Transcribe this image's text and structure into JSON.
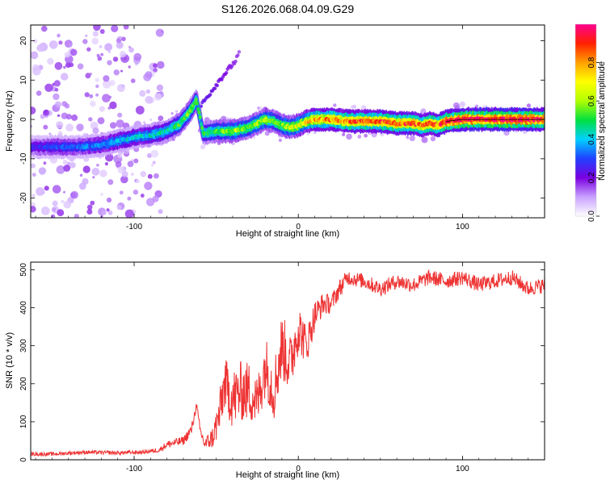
{
  "title": "S126.2026.068.04.09.G29",
  "chart_data": [
    {
      "type": "heatmap",
      "xlabel": "Height of straight line (km)",
      "ylabel": "Frequency (Hz)",
      "xlim": [
        -163,
        150
      ],
      "ylim": [
        -25,
        24
      ],
      "xticks": [
        -100,
        0,
        100
      ],
      "yticks": [
        -20,
        -10,
        0,
        10,
        20
      ],
      "colorbar": {
        "label": "Normalized spectral amplitude",
        "range": [
          0,
          1
        ],
        "ticks": [
          "0.0",
          "0.2",
          "0.4",
          "0.6",
          "0.8"
        ],
        "tick_values": [
          0,
          0.2,
          0.4,
          0.6,
          0.8
        ],
        "stops": [
          "#ffffff",
          "#c9a2ff",
          "#7a00e0",
          "#2040ff",
          "#00d0ff",
          "#00e040",
          "#b0ff00",
          "#ffff00",
          "#ffa000",
          "#ff2000",
          "#ff0090"
        ]
      },
      "ridge": {
        "x": [
          -163,
          -150,
          -135,
          -120,
          -110,
          -100,
          -90,
          -80,
          -72,
          -66,
          -62,
          -58,
          -50,
          -40,
          -30,
          -25,
          -20,
          -15,
          -10,
          -5,
          0,
          5,
          10,
          20,
          30,
          40,
          50,
          60,
          70,
          75,
          80,
          85,
          90,
          100,
          110,
          120,
          130,
          140,
          150
        ],
        "y": [
          -7,
          -7,
          -7,
          -6.5,
          -5.5,
          -4.5,
          -4,
          -3,
          -1,
          2,
          5,
          -3.5,
          -3,
          -3,
          -2,
          -1,
          0,
          -0.5,
          -1.5,
          -2,
          -1.5,
          -0.5,
          0,
          0,
          -0.5,
          -0.5,
          -0.5,
          -1,
          -1,
          -1.5,
          -1,
          -1.5,
          -0.5,
          0,
          0,
          0,
          0,
          0,
          0
        ],
        "amplitude": [
          0.25,
          0.3,
          0.32,
          0.35,
          0.38,
          0.4,
          0.42,
          0.45,
          0.5,
          0.55,
          0.5,
          0.48,
          0.52,
          0.6,
          0.55,
          0.6,
          0.62,
          0.55,
          0.58,
          0.62,
          0.65,
          0.7,
          0.78,
          0.8,
          0.82,
          0.85,
          0.85,
          0.88,
          0.86,
          0.8,
          0.84,
          0.82,
          0.92,
          0.95,
          0.95,
          0.96,
          0.96,
          0.95,
          0.95
        ]
      },
      "branch": {
        "x": [
          -62,
          -55,
          -48,
          -42,
          -38,
          -36
        ],
        "y": [
          2,
          6,
          10,
          13,
          15,
          17
        ],
        "amplitude": [
          0.3,
          0.28,
          0.26,
          0.24,
          0.22,
          0.2
        ]
      },
      "noise_region_x": [
        -163,
        -82
      ]
    },
    {
      "type": "line",
      "xlabel": "Height of straight line (km)",
      "ylabel": "SNR (10 * v/v)",
      "xlim": [
        -163,
        150
      ],
      "ylim": [
        0,
        520
      ],
      "xticks": [
        -100,
        0,
        100
      ],
      "yticks": [
        0,
        100,
        200,
        300,
        400,
        500
      ],
      "series": [
        {
          "name": "SNR",
          "color": "#ee3333",
          "x": [
            -163,
            -150,
            -130,
            -110,
            -95,
            -85,
            -80,
            -70,
            -65,
            -62,
            -60,
            -57,
            -52,
            -48,
            -45,
            -40,
            -35,
            -30,
            -25,
            -20,
            -15,
            -10,
            -5,
            0,
            5,
            10,
            15,
            20,
            25,
            30,
            40,
            50,
            60,
            70,
            80,
            90,
            100,
            110,
            120,
            130,
            140,
            150
          ],
          "y": [
            15,
            15,
            20,
            18,
            20,
            25,
            40,
            50,
            80,
            145,
            80,
            40,
            60,
            120,
            200,
            160,
            180,
            180,
            150,
            250,
            180,
            300,
            250,
            350,
            300,
            380,
            410,
            410,
            450,
            480,
            470,
            450,
            470,
            460,
            480,
            470,
            480,
            460,
            470,
            480,
            450,
            460
          ],
          "jitter": [
            5,
            5,
            5,
            5,
            5,
            6,
            10,
            12,
            15,
            10,
            15,
            15,
            30,
            60,
            70,
            80,
            80,
            80,
            70,
            80,
            80,
            90,
            80,
            70,
            50,
            40,
            30,
            25,
            25,
            20,
            20,
            20,
            20,
            20,
            20,
            20,
            20,
            20,
            20,
            20,
            20,
            20
          ]
        }
      ]
    }
  ]
}
